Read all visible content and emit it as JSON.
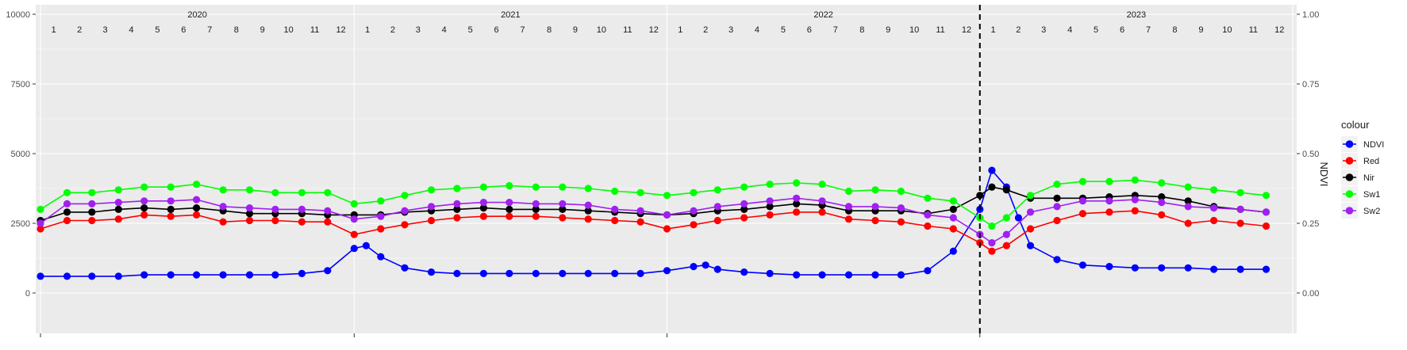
{
  "chart_data": {
    "type": "line",
    "title": "",
    "xlabel": "",
    "ylabel_left": "",
    "ylabel_right": "NDVI",
    "ylim_left": [
      0,
      10000
    ],
    "ylim_right": [
      0,
      1
    ],
    "yticks_left": [
      "0",
      "2500",
      "5000",
      "7500",
      "10000"
    ],
    "yticks_right": [
      "0.00",
      "0.25",
      "0.50",
      "0.75",
      "1.00"
    ],
    "years": [
      "2020",
      "2021",
      "2022",
      "2023"
    ],
    "months": [
      "1",
      "2",
      "3",
      "4",
      "5",
      "6",
      "7",
      "8",
      "9",
      "10",
      "11",
      "12"
    ],
    "x_range": [
      "2020-01-01",
      "2024-01-01"
    ],
    "vline_date": "2023-01-01",
    "legend": {
      "title": "colour",
      "position": "right"
    },
    "grid": true,
    "series": [
      {
        "name": "NDVI",
        "color": "#0000FF",
        "axis": "right",
        "points": [
          [
            "2020-01-01",
            0.06
          ],
          [
            "2020-02-01",
            0.06
          ],
          [
            "2020-03-01",
            0.06
          ],
          [
            "2020-04-01",
            0.06
          ],
          [
            "2020-05-01",
            0.065
          ],
          [
            "2020-06-01",
            0.065
          ],
          [
            "2020-07-01",
            0.065
          ],
          [
            "2020-08-01",
            0.065
          ],
          [
            "2020-09-01",
            0.065
          ],
          [
            "2020-10-01",
            0.065
          ],
          [
            "2020-11-01",
            0.07
          ],
          [
            "2020-12-01",
            0.08
          ],
          [
            "2021-01-01",
            0.16
          ],
          [
            "2021-01-15",
            0.17
          ],
          [
            "2021-02-01",
            0.13
          ],
          [
            "2021-03-01",
            0.09
          ],
          [
            "2021-04-01",
            0.075
          ],
          [
            "2021-05-01",
            0.07
          ],
          [
            "2021-06-01",
            0.07
          ],
          [
            "2021-07-01",
            0.07
          ],
          [
            "2021-08-01",
            0.07
          ],
          [
            "2021-09-01",
            0.07
          ],
          [
            "2021-10-01",
            0.07
          ],
          [
            "2021-11-01",
            0.07
          ],
          [
            "2021-12-01",
            0.07
          ],
          [
            "2022-01-01",
            0.08
          ],
          [
            "2022-02-01",
            0.095
          ],
          [
            "2022-02-15",
            0.1
          ],
          [
            "2022-03-01",
            0.085
          ],
          [
            "2022-04-01",
            0.075
          ],
          [
            "2022-05-01",
            0.07
          ],
          [
            "2022-06-01",
            0.065
          ],
          [
            "2022-07-01",
            0.065
          ],
          [
            "2022-08-01",
            0.065
          ],
          [
            "2022-09-01",
            0.065
          ],
          [
            "2022-10-01",
            0.065
          ],
          [
            "2022-11-01",
            0.08
          ],
          [
            "2022-12-01",
            0.15
          ],
          [
            "2023-01-01",
            0.3
          ],
          [
            "2023-01-15",
            0.44
          ],
          [
            "2023-02-01",
            0.38
          ],
          [
            "2023-02-15",
            0.27
          ],
          [
            "2023-03-01",
            0.17
          ],
          [
            "2023-04-01",
            0.12
          ],
          [
            "2023-05-01",
            0.1
          ],
          [
            "2023-06-01",
            0.095
          ],
          [
            "2023-07-01",
            0.09
          ],
          [
            "2023-08-01",
            0.09
          ],
          [
            "2023-09-01",
            0.09
          ],
          [
            "2023-10-01",
            0.085
          ],
          [
            "2023-11-01",
            0.085
          ],
          [
            "2023-12-01",
            0.085
          ]
        ]
      },
      {
        "name": "Red",
        "color": "#FF0000",
        "axis": "left",
        "points": [
          [
            "2020-01-01",
            2300
          ],
          [
            "2020-02-01",
            2600
          ],
          [
            "2020-03-01",
            2600
          ],
          [
            "2020-04-01",
            2650
          ],
          [
            "2020-05-01",
            2800
          ],
          [
            "2020-06-01",
            2750
          ],
          [
            "2020-07-01",
            2800
          ],
          [
            "2020-08-01",
            2550
          ],
          [
            "2020-09-01",
            2600
          ],
          [
            "2020-10-01",
            2600
          ],
          [
            "2020-11-01",
            2550
          ],
          [
            "2020-12-01",
            2550
          ],
          [
            "2021-01-01",
            2100
          ],
          [
            "2021-02-01",
            2300
          ],
          [
            "2021-03-01",
            2450
          ],
          [
            "2021-04-01",
            2600
          ],
          [
            "2021-05-01",
            2700
          ],
          [
            "2021-06-01",
            2750
          ],
          [
            "2021-07-01",
            2750
          ],
          [
            "2021-08-01",
            2750
          ],
          [
            "2021-09-01",
            2700
          ],
          [
            "2021-10-01",
            2650
          ],
          [
            "2021-11-01",
            2600
          ],
          [
            "2021-12-01",
            2550
          ],
          [
            "2022-01-01",
            2300
          ],
          [
            "2022-02-01",
            2450
          ],
          [
            "2022-03-01",
            2600
          ],
          [
            "2022-04-01",
            2700
          ],
          [
            "2022-05-01",
            2800
          ],
          [
            "2022-06-01",
            2900
          ],
          [
            "2022-07-01",
            2900
          ],
          [
            "2022-08-01",
            2650
          ],
          [
            "2022-09-01",
            2600
          ],
          [
            "2022-10-01",
            2550
          ],
          [
            "2022-11-01",
            2400
          ],
          [
            "2022-12-01",
            2300
          ],
          [
            "2023-01-01",
            1800
          ],
          [
            "2023-01-15",
            1500
          ],
          [
            "2023-02-01",
            1700
          ],
          [
            "2023-03-01",
            2300
          ],
          [
            "2023-04-01",
            2600
          ],
          [
            "2023-05-01",
            2850
          ],
          [
            "2023-06-01",
            2900
          ],
          [
            "2023-07-01",
            2950
          ],
          [
            "2023-08-01",
            2800
          ],
          [
            "2023-09-01",
            2500
          ],
          [
            "2023-10-01",
            2600
          ],
          [
            "2023-11-01",
            2500
          ],
          [
            "2023-12-01",
            2400
          ]
        ]
      },
      {
        "name": "Nir",
        "color": "#000000",
        "axis": "left",
        "points": [
          [
            "2020-01-01",
            2600
          ],
          [
            "2020-02-01",
            2900
          ],
          [
            "2020-03-01",
            2900
          ],
          [
            "2020-04-01",
            3000
          ],
          [
            "2020-05-01",
            3050
          ],
          [
            "2020-06-01",
            3000
          ],
          [
            "2020-07-01",
            3050
          ],
          [
            "2020-08-01",
            2950
          ],
          [
            "2020-09-01",
            2850
          ],
          [
            "2020-10-01",
            2850
          ],
          [
            "2020-11-01",
            2850
          ],
          [
            "2020-12-01",
            2800
          ],
          [
            "2021-01-01",
            2800
          ],
          [
            "2021-02-01",
            2800
          ],
          [
            "2021-03-01",
            2900
          ],
          [
            "2021-04-01",
            2950
          ],
          [
            "2021-05-01",
            3000
          ],
          [
            "2021-06-01",
            3050
          ],
          [
            "2021-07-01",
            3000
          ],
          [
            "2021-08-01",
            3000
          ],
          [
            "2021-09-01",
            3000
          ],
          [
            "2021-10-01",
            2950
          ],
          [
            "2021-11-01",
            2900
          ],
          [
            "2021-12-01",
            2850
          ],
          [
            "2022-01-01",
            2800
          ],
          [
            "2022-02-01",
            2850
          ],
          [
            "2022-03-01",
            2950
          ],
          [
            "2022-04-01",
            3000
          ],
          [
            "2022-05-01",
            3100
          ],
          [
            "2022-06-01",
            3200
          ],
          [
            "2022-07-01",
            3150
          ],
          [
            "2022-08-01",
            2950
          ],
          [
            "2022-09-01",
            2950
          ],
          [
            "2022-10-01",
            2950
          ],
          [
            "2022-11-01",
            2850
          ],
          [
            "2022-12-01",
            3000
          ],
          [
            "2023-01-01",
            3500
          ],
          [
            "2023-01-15",
            3800
          ],
          [
            "2023-02-01",
            3700
          ],
          [
            "2023-03-01",
            3400
          ],
          [
            "2023-04-01",
            3400
          ],
          [
            "2023-05-01",
            3400
          ],
          [
            "2023-06-01",
            3450
          ],
          [
            "2023-07-01",
            3500
          ],
          [
            "2023-08-01",
            3450
          ],
          [
            "2023-09-01",
            3300
          ],
          [
            "2023-10-01",
            3100
          ],
          [
            "2023-11-01",
            3000
          ],
          [
            "2023-12-01",
            2900
          ]
        ]
      },
      {
        "name": "Sw1",
        "color": "#00FF00",
        "axis": "left",
        "points": [
          [
            "2020-01-01",
            3000
          ],
          [
            "2020-02-01",
            3600
          ],
          [
            "2020-03-01",
            3600
          ],
          [
            "2020-04-01",
            3700
          ],
          [
            "2020-05-01",
            3800
          ],
          [
            "2020-06-01",
            3800
          ],
          [
            "2020-07-01",
            3900
          ],
          [
            "2020-08-01",
            3700
          ],
          [
            "2020-09-01",
            3700
          ],
          [
            "2020-10-01",
            3600
          ],
          [
            "2020-11-01",
            3600
          ],
          [
            "2020-12-01",
            3600
          ],
          [
            "2021-01-01",
            3200
          ],
          [
            "2021-02-01",
            3300
          ],
          [
            "2021-03-01",
            3500
          ],
          [
            "2021-04-01",
            3700
          ],
          [
            "2021-05-01",
            3750
          ],
          [
            "2021-06-01",
            3800
          ],
          [
            "2021-07-01",
            3850
          ],
          [
            "2021-08-01",
            3800
          ],
          [
            "2021-09-01",
            3800
          ],
          [
            "2021-10-01",
            3750
          ],
          [
            "2021-11-01",
            3650
          ],
          [
            "2021-12-01",
            3600
          ],
          [
            "2022-01-01",
            3500
          ],
          [
            "2022-02-01",
            3600
          ],
          [
            "2022-03-01",
            3700
          ],
          [
            "2022-04-01",
            3800
          ],
          [
            "2022-05-01",
            3900
          ],
          [
            "2022-06-01",
            3950
          ],
          [
            "2022-07-01",
            3900
          ],
          [
            "2022-08-01",
            3650
          ],
          [
            "2022-09-01",
            3700
          ],
          [
            "2022-10-01",
            3650
          ],
          [
            "2022-11-01",
            3400
          ],
          [
            "2022-12-01",
            3300
          ],
          [
            "2023-01-01",
            2700
          ],
          [
            "2023-01-15",
            2400
          ],
          [
            "2023-02-01",
            2700
          ],
          [
            "2023-03-01",
            3500
          ],
          [
            "2023-04-01",
            3900
          ],
          [
            "2023-05-01",
            4000
          ],
          [
            "2023-06-01",
            4000
          ],
          [
            "2023-07-01",
            4050
          ],
          [
            "2023-08-01",
            3950
          ],
          [
            "2023-09-01",
            3800
          ],
          [
            "2023-10-01",
            3700
          ],
          [
            "2023-11-01",
            3600
          ],
          [
            "2023-12-01",
            3500
          ]
        ]
      },
      {
        "name": "Sw2",
        "color": "#A020F0",
        "axis": "left",
        "points": [
          [
            "2020-01-01",
            2500
          ],
          [
            "2020-02-01",
            3200
          ],
          [
            "2020-03-01",
            3200
          ],
          [
            "2020-04-01",
            3250
          ],
          [
            "2020-05-01",
            3300
          ],
          [
            "2020-06-01",
            3300
          ],
          [
            "2020-07-01",
            3350
          ],
          [
            "2020-08-01",
            3100
          ],
          [
            "2020-09-01",
            3050
          ],
          [
            "2020-10-01",
            3000
          ],
          [
            "2020-11-01",
            3000
          ],
          [
            "2020-12-01",
            2950
          ],
          [
            "2021-01-01",
            2650
          ],
          [
            "2021-02-01",
            2750
          ],
          [
            "2021-03-01",
            2950
          ],
          [
            "2021-04-01",
            3100
          ],
          [
            "2021-05-01",
            3200
          ],
          [
            "2021-06-01",
            3250
          ],
          [
            "2021-07-01",
            3250
          ],
          [
            "2021-08-01",
            3200
          ],
          [
            "2021-09-01",
            3200
          ],
          [
            "2021-10-01",
            3150
          ],
          [
            "2021-11-01",
            3000
          ],
          [
            "2021-12-01",
            2950
          ],
          [
            "2022-01-01",
            2800
          ],
          [
            "2022-02-01",
            2950
          ],
          [
            "2022-03-01",
            3100
          ],
          [
            "2022-04-01",
            3200
          ],
          [
            "2022-05-01",
            3300
          ],
          [
            "2022-06-01",
            3400
          ],
          [
            "2022-07-01",
            3300
          ],
          [
            "2022-08-01",
            3100
          ],
          [
            "2022-09-01",
            3100
          ],
          [
            "2022-10-01",
            3050
          ],
          [
            "2022-11-01",
            2800
          ],
          [
            "2022-12-01",
            2700
          ],
          [
            "2023-01-01",
            2100
          ],
          [
            "2023-01-15",
            1800
          ],
          [
            "2023-02-01",
            2100
          ],
          [
            "2023-03-01",
            2900
          ],
          [
            "2023-04-01",
            3100
          ],
          [
            "2023-05-01",
            3300
          ],
          [
            "2023-06-01",
            3300
          ],
          [
            "2023-07-01",
            3350
          ],
          [
            "2023-08-01",
            3250
          ],
          [
            "2023-09-01",
            3100
          ],
          [
            "2023-10-01",
            3050
          ],
          [
            "2023-11-01",
            3000
          ],
          [
            "2023-12-01",
            2900
          ]
        ]
      }
    ]
  }
}
